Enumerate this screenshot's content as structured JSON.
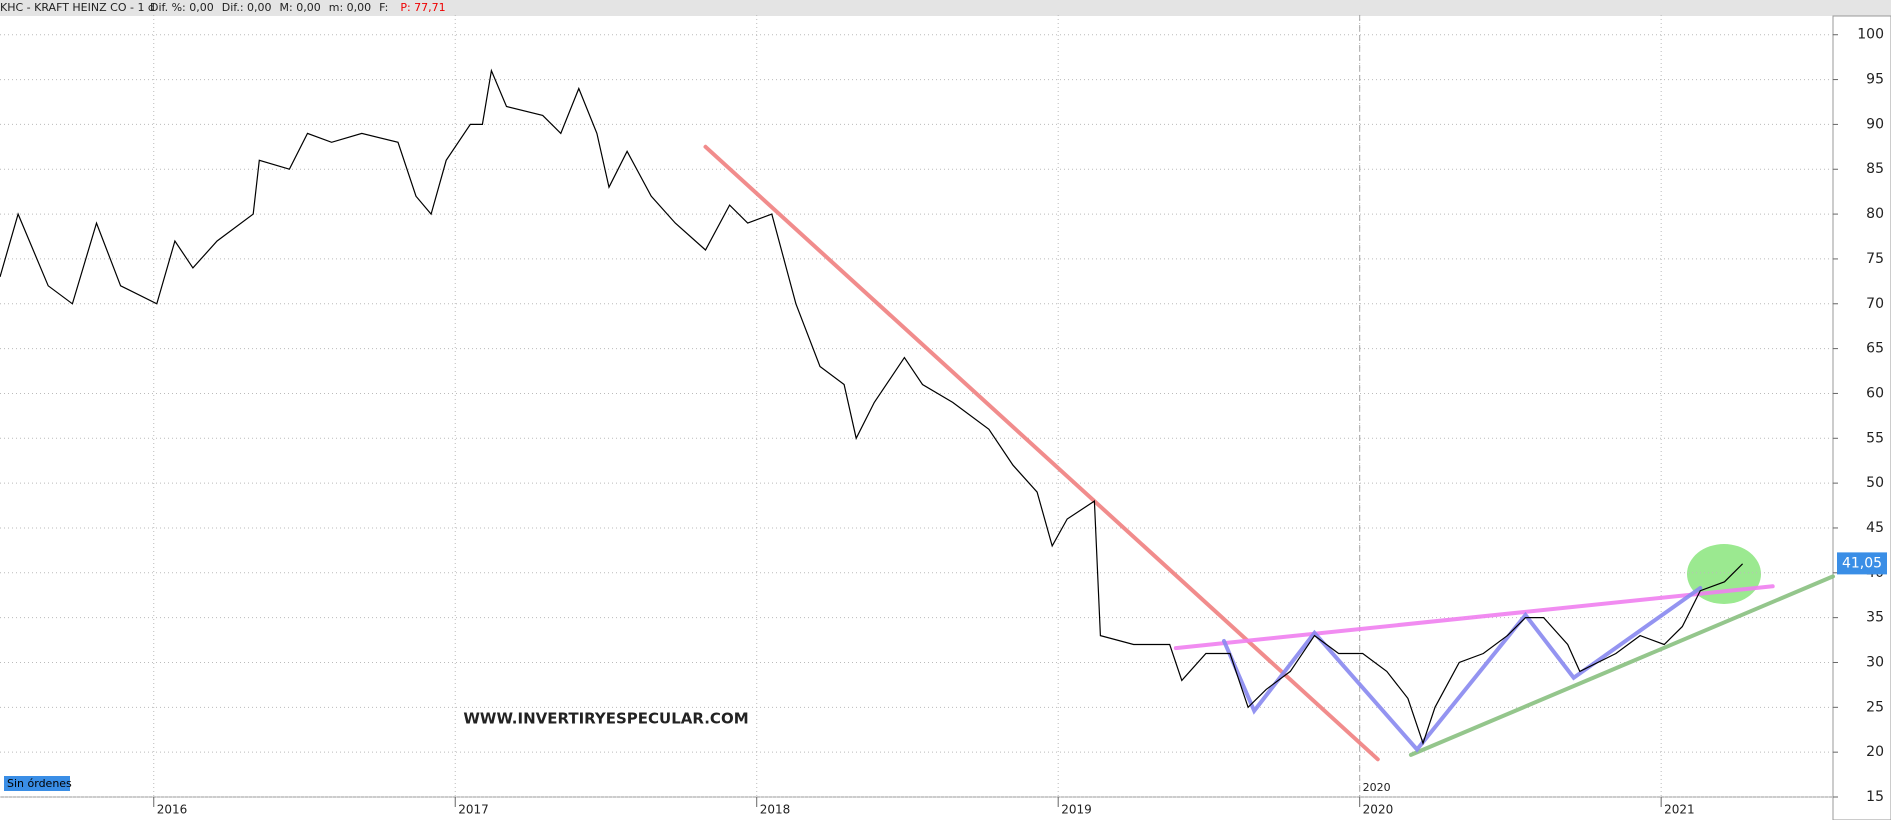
{
  "header": {
    "ticker": "KHC - KRAFT HEINZ CO -  1 d",
    "fields": [
      "Dif. %: 0,00",
      "Dif.: 0,00",
      "M: 0,00",
      "m: 0,00",
      "F:"
    ],
    "price": "P: 77,71"
  },
  "chart_data": {
    "type": "line",
    "color": "#000000",
    "x": [
      2015.49,
      2015.55,
      2015.65,
      2015.73,
      2015.81,
      2015.89,
      2016.01,
      2016.07,
      2016.13,
      2016.21,
      2016.33,
      2016.35,
      2016.45,
      2016.51,
      2016.59,
      2016.69,
      2016.81,
      2016.87,
      2016.92,
      2016.97,
      2017.05,
      2017.09,
      2017.12,
      2017.17,
      2017.29,
      2017.35,
      2017.41,
      2017.47,
      2017.51,
      2017.57,
      2017.65,
      2017.73,
      2017.83,
      2017.91,
      2017.97,
      2018.05,
      2018.13,
      2018.21,
      2018.29,
      2018.33,
      2018.39,
      2018.49,
      2018.55,
      2018.65,
      2018.77,
      2018.85,
      2018.93,
      2018.98,
      2019.03,
      2019.12,
      2019.14,
      2019.25,
      2019.37,
      2019.41,
      2019.49,
      2019.57,
      2019.63,
      2019.69,
      2019.77,
      2019.85,
      2019.93,
      2020.01,
      2020.09,
      2020.16,
      2020.21,
      2020.25,
      2020.33,
      2020.41,
      2020.49,
      2020.55,
      2020.61,
      2020.69,
      2020.73,
      2020.85,
      2020.93,
      2021.01,
      2021.07,
      2021.13,
      2021.21,
      2021.27
    ],
    "values": [
      73,
      80,
      72,
      70,
      79,
      72,
      70,
      77,
      74,
      77,
      80,
      86,
      85,
      89,
      88,
      89,
      88,
      82,
      80,
      86,
      90,
      90,
      96,
      92,
      91,
      89,
      94,
      89,
      83,
      87,
      82,
      79,
      76,
      81,
      79,
      80,
      70,
      63,
      61,
      55,
      59,
      64,
      61,
      59,
      56,
      52,
      49,
      43,
      46,
      48,
      33,
      32,
      32,
      28,
      31,
      31,
      25,
      27,
      29,
      33,
      31,
      31,
      29,
      26,
      21,
      25,
      30,
      31,
      33,
      35,
      35,
      32,
      29,
      31,
      33,
      32,
      34,
      38,
      39,
      41
    ],
    "xlim": [
      2015.49,
      2021.57
    ],
    "xticks": [
      2016,
      2017,
      2018,
      2019,
      2020,
      2021
    ],
    "ylim": [
      15,
      102.2
    ],
    "yticks": [
      15,
      20,
      25,
      30,
      35,
      40,
      45,
      50,
      55,
      60,
      65,
      70,
      75,
      80,
      85,
      90,
      95,
      100
    ],
    "grid": true,
    "period_marker": {
      "value": 2020,
      "label": "2020"
    },
    "last_price": {
      "value": 41.05,
      "label": "41,05"
    },
    "lines": [
      {
        "color": "#f08080",
        "x": [
          2017.83,
          2020.06
        ],
        "values": [
          87.5,
          19.2
        ]
      },
      {
        "color": "#f080f0",
        "x": [
          2019.39,
          2021.37
        ],
        "values": [
          31.6,
          38.5
        ]
      },
      {
        "color": "#88c080",
        "x": [
          2020.17,
          2021.57
        ],
        "values": [
          19.7,
          39.6
        ]
      },
      {
        "color": "#8888f0",
        "x": [
          2019.55,
          2019.65,
          2019.85,
          2020.19,
          2020.55,
          2020.71,
          2021.13
        ],
        "values": [
          32.4,
          24.6,
          33.3,
          20.3,
          35.3,
          28.3,
          38.3
        ]
      }
    ],
    "watermark": "WWW.INVERTIRYESPECULAR.COM",
    "status": "Sin órdenes"
  }
}
